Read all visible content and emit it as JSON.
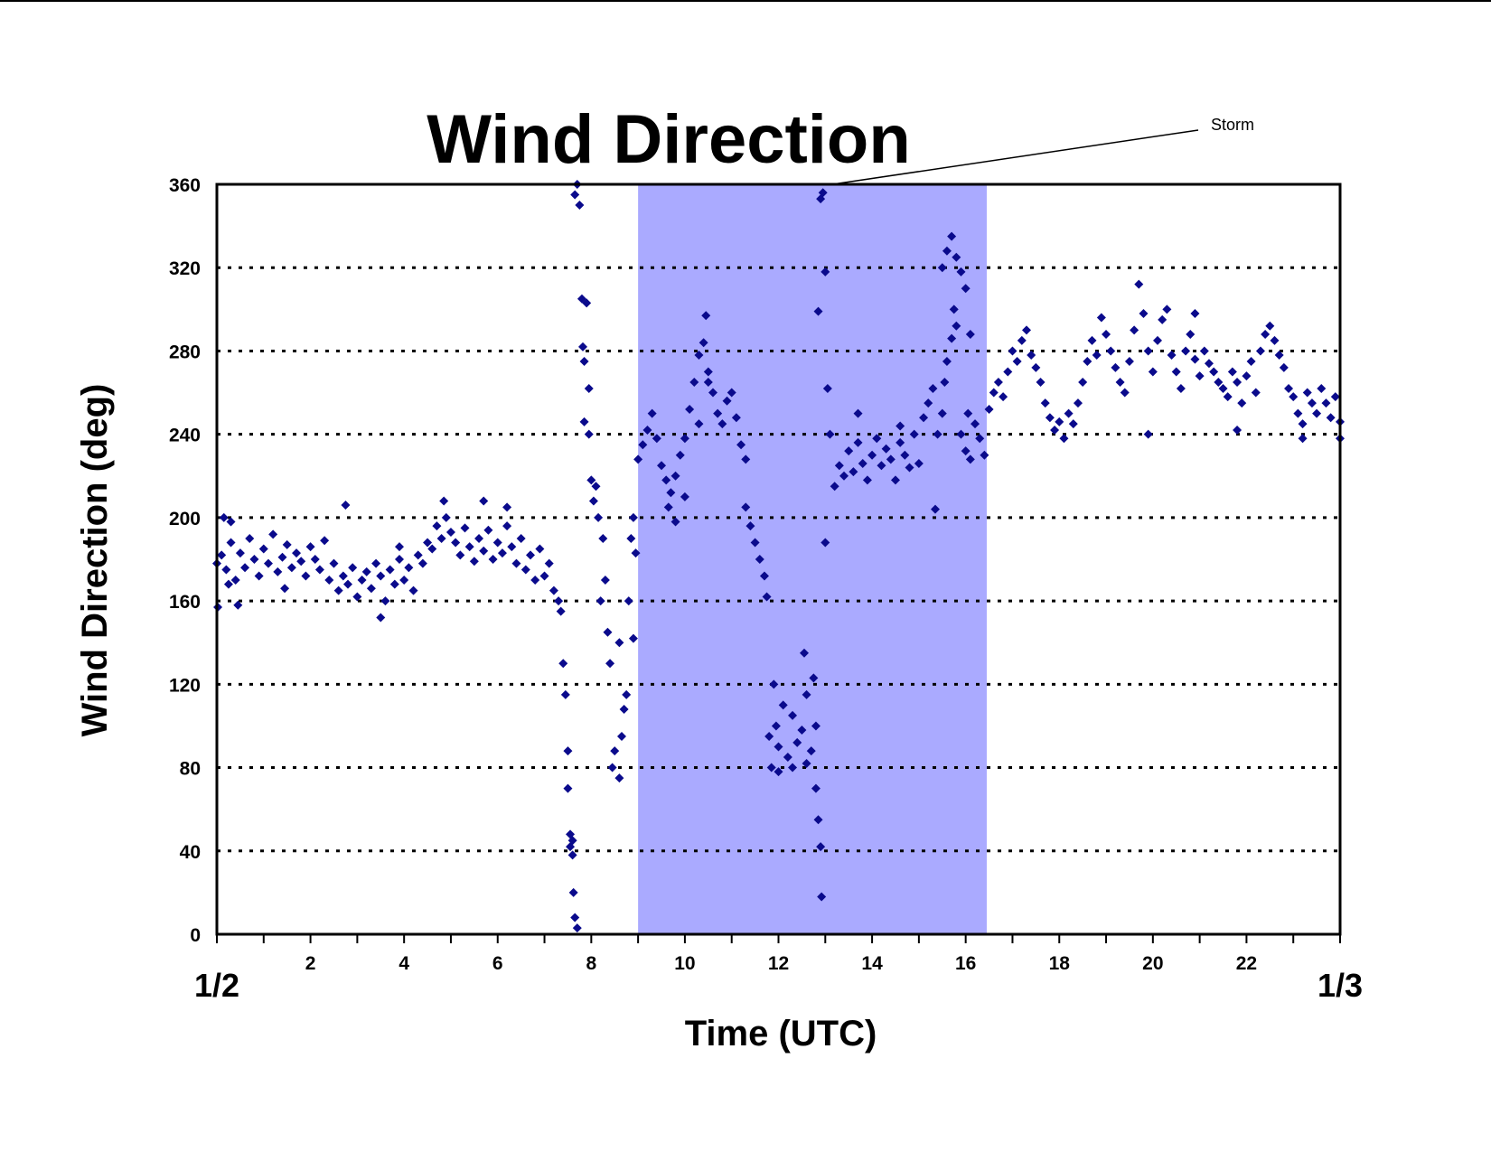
{
  "chart_data": {
    "type": "scatter",
    "title": "Wind Direction",
    "xlabel": "Time (UTC)",
    "ylabel": "Wind Direction (deg)",
    "xlim": [
      0,
      24
    ],
    "ylim": [
      0,
      360
    ],
    "x_ticks": [
      2,
      4,
      6,
      8,
      10,
      12,
      14,
      16,
      18,
      20,
      22
    ],
    "y_ticks": [
      0,
      40,
      80,
      120,
      160,
      200,
      240,
      280,
      320,
      360
    ],
    "date_labels": [
      {
        "x": 0,
        "label": "1/2"
      },
      {
        "x": 24,
        "label": "1/3"
      }
    ],
    "grid": "horizontal-dotted",
    "shaded_region": {
      "x_start": 9.0,
      "x_end": 16.45,
      "color": "#aaaaff"
    },
    "annotation": {
      "text": "Storm",
      "points_to_x": 13.0,
      "points_to_y": 360
    },
    "marker_color": "#0a0a8c",
    "marker": "diamond",
    "series": [
      {
        "points": [
          [
            0.0,
            178
          ],
          [
            0.1,
            182
          ],
          [
            0.2,
            175
          ],
          [
            0.3,
            188
          ],
          [
            0.4,
            170
          ],
          [
            0.5,
            183
          ],
          [
            0.6,
            176
          ],
          [
            0.7,
            190
          ],
          [
            0.8,
            180
          ],
          [
            0.9,
            172
          ],
          [
            1.0,
            185
          ],
          [
            1.1,
            178
          ],
          [
            1.2,
            192
          ],
          [
            1.3,
            174
          ],
          [
            1.4,
            181
          ],
          [
            1.5,
            187
          ],
          [
            1.6,
            176
          ],
          [
            1.7,
            183
          ],
          [
            1.8,
            179
          ],
          [
            1.9,
            172
          ],
          [
            2.0,
            186
          ],
          [
            2.1,
            180
          ],
          [
            2.2,
            175
          ],
          [
            2.3,
            189
          ],
          [
            2.4,
            170
          ],
          [
            2.5,
            178
          ],
          [
            2.6,
            165
          ],
          [
            2.7,
            172
          ],
          [
            2.8,
            168
          ],
          [
            2.9,
            176
          ],
          [
            3.0,
            162
          ],
          [
            3.1,
            170
          ],
          [
            3.2,
            174
          ],
          [
            3.3,
            166
          ],
          [
            3.4,
            178
          ],
          [
            3.5,
            172
          ],
          [
            3.6,
            160
          ],
          [
            3.7,
            175
          ],
          [
            3.8,
            168
          ],
          [
            3.9,
            180
          ],
          [
            4.0,
            170
          ],
          [
            4.1,
            176
          ],
          [
            4.2,
            165
          ],
          [
            4.3,
            182
          ],
          [
            4.4,
            178
          ],
          [
            4.5,
            188
          ],
          [
            4.6,
            185
          ],
          [
            4.7,
            196
          ],
          [
            4.8,
            190
          ],
          [
            4.9,
            200
          ],
          [
            5.0,
            193
          ],
          [
            5.1,
            188
          ],
          [
            5.2,
            182
          ],
          [
            5.3,
            195
          ],
          [
            5.4,
            186
          ],
          [
            5.5,
            179
          ],
          [
            5.6,
            190
          ],
          [
            5.7,
            184
          ],
          [
            5.8,
            194
          ],
          [
            5.9,
            180
          ],
          [
            6.0,
            188
          ],
          [
            6.1,
            183
          ],
          [
            6.2,
            196
          ],
          [
            6.3,
            186
          ],
          [
            6.4,
            178
          ],
          [
            6.5,
            190
          ],
          [
            6.6,
            175
          ],
          [
            6.7,
            182
          ],
          [
            6.8,
            170
          ],
          [
            6.9,
            185
          ],
          [
            7.0,
            172
          ],
          [
            7.1,
            178
          ],
          [
            7.2,
            165
          ],
          [
            7.3,
            160
          ],
          [
            7.35,
            155
          ],
          [
            0.02,
            157
          ],
          [
            0.15,
            200
          ],
          [
            0.25,
            168
          ],
          [
            0.45,
            158
          ],
          [
            1.45,
            166
          ],
          [
            2.75,
            206
          ],
          [
            3.5,
            152
          ],
          [
            4.85,
            208
          ],
          [
            5.7,
            208
          ],
          [
            6.2,
            205
          ],
          [
            0.3,
            198
          ],
          [
            3.9,
            186
          ],
          [
            7.4,
            130
          ],
          [
            7.45,
            115
          ],
          [
            7.5,
            88
          ],
          [
            7.5,
            70
          ],
          [
            7.55,
            48
          ],
          [
            7.6,
            38
          ],
          [
            7.62,
            20
          ],
          [
            7.65,
            8
          ],
          [
            7.7,
            3
          ],
          [
            7.55,
            42
          ],
          [
            7.6,
            45
          ],
          [
            7.65,
            355
          ],
          [
            7.7,
            360
          ],
          [
            7.75,
            350
          ],
          [
            7.8,
            305
          ],
          [
            7.82,
            282
          ],
          [
            7.85,
            275
          ],
          [
            7.9,
            303
          ],
          [
            7.95,
            262
          ],
          [
            7.85,
            246
          ],
          [
            7.95,
            240
          ],
          [
            8.0,
            218
          ],
          [
            8.05,
            208
          ],
          [
            8.1,
            215
          ],
          [
            8.15,
            200
          ],
          [
            8.2,
            160
          ],
          [
            8.25,
            190
          ],
          [
            8.3,
            170
          ],
          [
            8.35,
            145
          ],
          [
            8.4,
            130
          ],
          [
            8.45,
            80
          ],
          [
            8.5,
            88
          ],
          [
            8.6,
            75
          ],
          [
            8.65,
            95
          ],
          [
            8.7,
            108
          ],
          [
            8.75,
            115
          ],
          [
            8.8,
            160
          ],
          [
            8.85,
            190
          ],
          [
            8.9,
            200
          ],
          [
            8.95,
            183
          ],
          [
            8.9,
            142
          ],
          [
            8.6,
            140
          ],
          [
            9.0,
            228
          ],
          [
            9.1,
            235
          ],
          [
            9.2,
            242
          ],
          [
            9.3,
            250
          ],
          [
            9.4,
            238
          ],
          [
            9.5,
            225
          ],
          [
            9.6,
            218
          ],
          [
            9.7,
            212
          ],
          [
            9.8,
            220
          ],
          [
            9.9,
            230
          ],
          [
            10.0,
            238
          ],
          [
            10.1,
            252
          ],
          [
            10.2,
            265
          ],
          [
            10.3,
            278
          ],
          [
            10.4,
            284
          ],
          [
            10.45,
            297
          ],
          [
            10.5,
            270
          ],
          [
            10.6,
            260
          ],
          [
            10.7,
            250
          ],
          [
            10.8,
            245
          ],
          [
            10.9,
            256
          ],
          [
            11.0,
            260
          ],
          [
            11.1,
            248
          ],
          [
            11.2,
            235
          ],
          [
            11.3,
            228
          ],
          [
            9.65,
            205
          ],
          [
            9.8,
            198
          ],
          [
            10.0,
            210
          ],
          [
            10.3,
            245
          ],
          [
            10.5,
            265
          ],
          [
            11.3,
            205
          ],
          [
            11.4,
            196
          ],
          [
            11.5,
            188
          ],
          [
            11.6,
            180
          ],
          [
            11.7,
            172
          ],
          [
            11.75,
            162
          ],
          [
            11.8,
            95
          ],
          [
            11.85,
            80
          ],
          [
            11.9,
            120
          ],
          [
            11.95,
            100
          ],
          [
            12.0,
            90
          ],
          [
            12.1,
            110
          ],
          [
            12.2,
            85
          ],
          [
            12.3,
            105
          ],
          [
            12.4,
            92
          ],
          [
            12.5,
            98
          ],
          [
            12.55,
            135
          ],
          [
            12.6,
            115
          ],
          [
            12.7,
            88
          ],
          [
            12.75,
            123
          ],
          [
            12.8,
            70
          ],
          [
            12.85,
            55
          ],
          [
            12.9,
            42
          ],
          [
            12.92,
            18
          ],
          [
            12.0,
            78
          ],
          [
            12.3,
            80
          ],
          [
            12.6,
            82
          ],
          [
            12.8,
            100
          ],
          [
            12.85,
            299
          ],
          [
            12.9,
            353
          ],
          [
            12.95,
            356
          ],
          [
            13.0,
            318
          ],
          [
            13.05,
            262
          ],
          [
            13.1,
            240
          ],
          [
            13.0,
            188
          ],
          [
            13.2,
            215
          ],
          [
            13.3,
            225
          ],
          [
            13.4,
            220
          ],
          [
            13.5,
            232
          ],
          [
            13.6,
            222
          ],
          [
            13.7,
            236
          ],
          [
            13.8,
            226
          ],
          [
            13.9,
            218
          ],
          [
            14.0,
            230
          ],
          [
            14.1,
            238
          ],
          [
            14.2,
            225
          ],
          [
            14.3,
            233
          ],
          [
            14.4,
            228
          ],
          [
            14.5,
            218
          ],
          [
            14.6,
            236
          ],
          [
            14.7,
            230
          ],
          [
            14.8,
            224
          ],
          [
            14.9,
            240
          ],
          [
            15.0,
            226
          ],
          [
            15.1,
            248
          ],
          [
            15.2,
            255
          ],
          [
            15.3,
            262
          ],
          [
            15.35,
            204
          ],
          [
            15.4,
            240
          ],
          [
            15.5,
            250
          ],
          [
            15.55,
            265
          ],
          [
            15.6,
            275
          ],
          [
            15.7,
            286
          ],
          [
            13.7,
            250
          ],
          [
            14.6,
            244
          ],
          [
            15.5,
            320
          ],
          [
            15.6,
            328
          ],
          [
            15.7,
            335
          ],
          [
            15.8,
            325
          ],
          [
            15.9,
            318
          ],
          [
            16.0,
            310
          ],
          [
            15.75,
            300
          ],
          [
            15.8,
            292
          ],
          [
            16.1,
            288
          ],
          [
            15.9,
            240
          ],
          [
            16.0,
            232
          ],
          [
            16.1,
            228
          ],
          [
            16.2,
            245
          ],
          [
            16.3,
            238
          ],
          [
            16.4,
            230
          ],
          [
            16.05,
            250
          ],
          [
            16.5,
            252
          ],
          [
            16.6,
            260
          ],
          [
            16.7,
            265
          ],
          [
            16.8,
            258
          ],
          [
            16.9,
            270
          ],
          [
            17.0,
            280
          ],
          [
            17.1,
            275
          ],
          [
            17.2,
            285
          ],
          [
            17.3,
            290
          ],
          [
            17.4,
            278
          ],
          [
            17.5,
            272
          ],
          [
            17.6,
            265
          ],
          [
            17.7,
            255
          ],
          [
            17.8,
            248
          ],
          [
            17.9,
            242
          ],
          [
            18.0,
            246
          ],
          [
            18.1,
            238
          ],
          [
            18.2,
            250
          ],
          [
            18.3,
            245
          ],
          [
            18.4,
            255
          ],
          [
            18.5,
            265
          ],
          [
            18.6,
            275
          ],
          [
            18.7,
            285
          ],
          [
            18.8,
            278
          ],
          [
            18.9,
            296
          ],
          [
            19.0,
            288
          ],
          [
            19.1,
            280
          ],
          [
            19.2,
            272
          ],
          [
            19.3,
            265
          ],
          [
            19.4,
            260
          ],
          [
            19.5,
            275
          ],
          [
            19.6,
            290
          ],
          [
            19.7,
            312
          ],
          [
            19.8,
            298
          ],
          [
            19.9,
            280
          ],
          [
            20.0,
            270
          ],
          [
            20.1,
            285
          ],
          [
            20.2,
            295
          ],
          [
            20.3,
            300
          ],
          [
            20.4,
            278
          ],
          [
            20.5,
            270
          ],
          [
            20.6,
            262
          ],
          [
            20.7,
            280
          ],
          [
            20.8,
            288
          ],
          [
            20.9,
            276
          ],
          [
            21.0,
            268
          ],
          [
            21.1,
            280
          ],
          [
            21.2,
            274
          ],
          [
            21.3,
            270
          ],
          [
            21.4,
            265
          ],
          [
            21.5,
            262
          ],
          [
            21.6,
            258
          ],
          [
            21.7,
            270
          ],
          [
            21.8,
            265
          ],
          [
            21.9,
            255
          ],
          [
            22.0,
            268
          ],
          [
            22.1,
            275
          ],
          [
            22.2,
            260
          ],
          [
            22.3,
            280
          ],
          [
            22.4,
            288
          ],
          [
            22.5,
            292
          ],
          [
            22.6,
            285
          ],
          [
            22.7,
            278
          ],
          [
            22.8,
            272
          ],
          [
            22.9,
            262
          ],
          [
            23.0,
            258
          ],
          [
            23.1,
            250
          ],
          [
            23.2,
            245
          ],
          [
            23.3,
            260
          ],
          [
            23.4,
            255
          ],
          [
            23.5,
            250
          ],
          [
            23.6,
            262
          ],
          [
            23.7,
            255
          ],
          [
            23.8,
            248
          ],
          [
            23.9,
            258
          ],
          [
            24.0,
            246
          ],
          [
            19.9,
            240
          ],
          [
            21.8,
            242
          ],
          [
            23.2,
            238
          ],
          [
            20.9,
            298
          ],
          [
            24.0,
            238
          ]
        ]
      }
    ]
  }
}
